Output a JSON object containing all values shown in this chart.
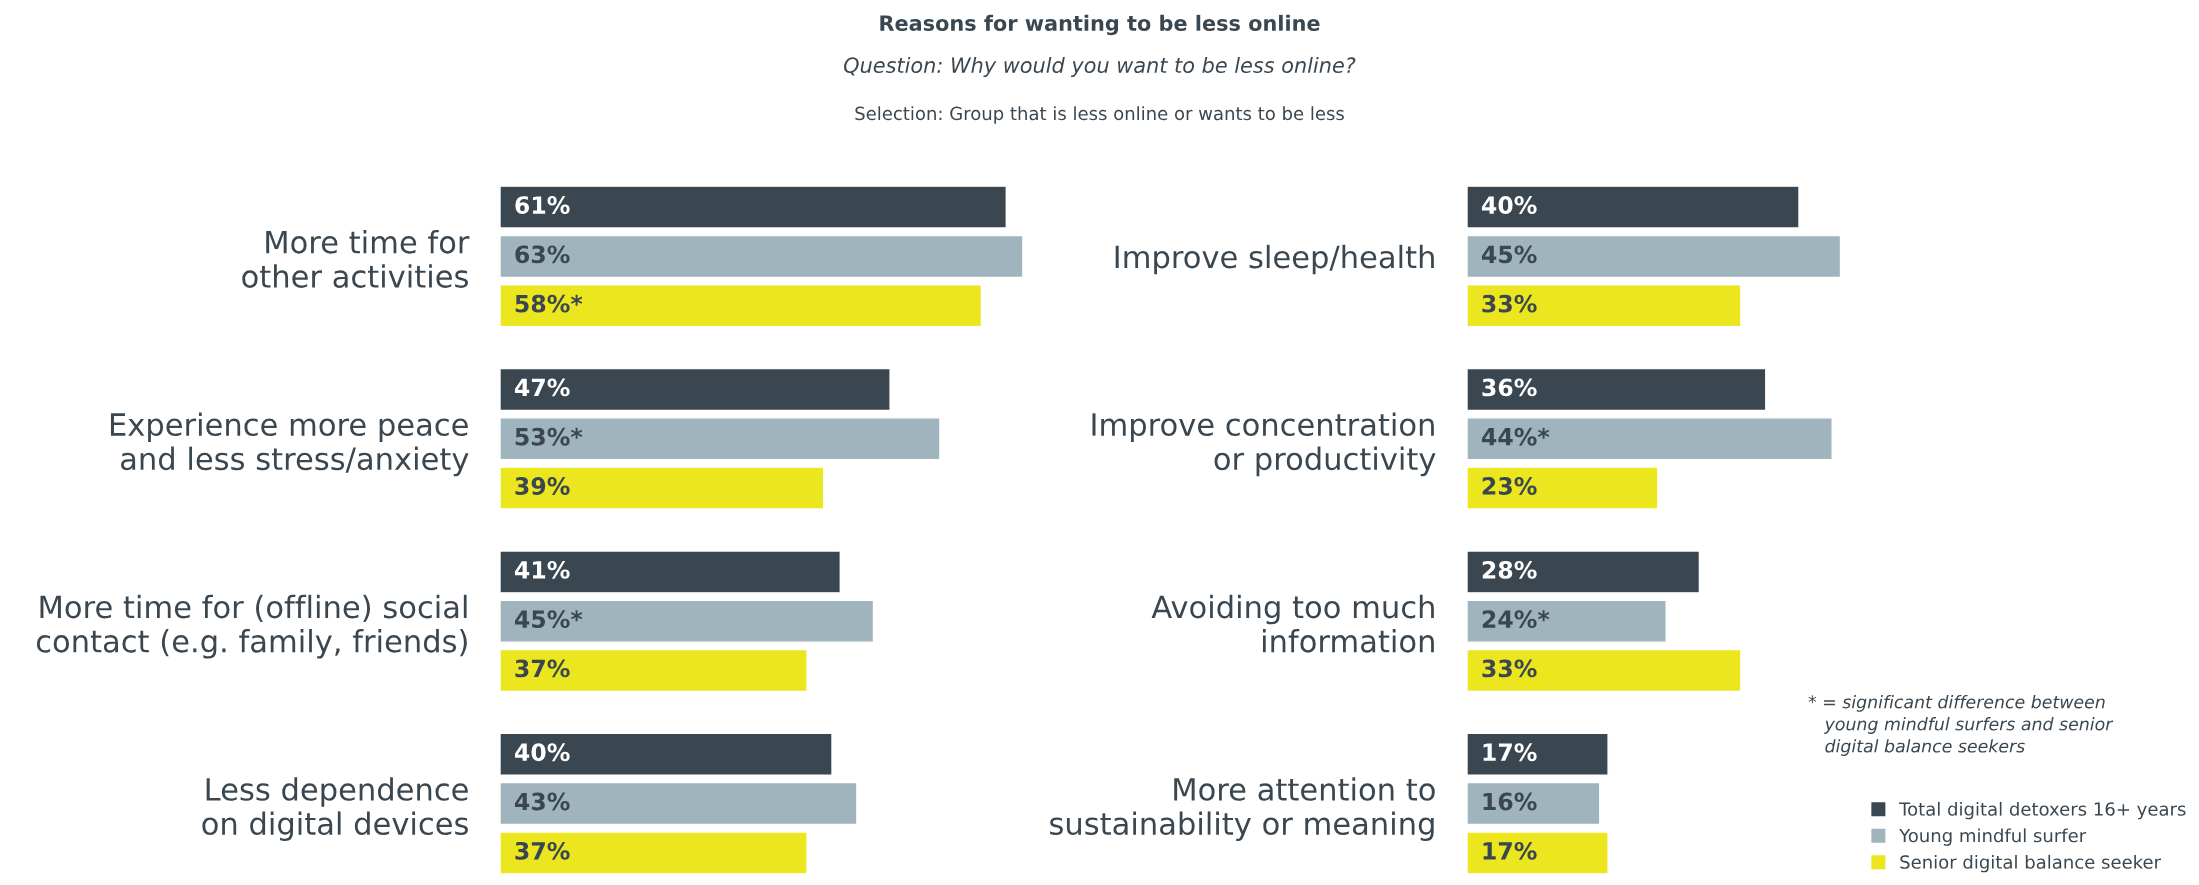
{
  "chart_data": [
    {
      "type": "bar",
      "orientation": "horizontal",
      "title": "Reasons for wanting to be less online",
      "subtitle": "Question: Why would you want to be less online?",
      "annotations": [
        "Selection: Group that is less online or wants to be less"
      ],
      "categories": [
        "More time for\nother activities",
        "Experience more peace\nand less stress/anxiety",
        "More time for (offline) social\ncontact (e.g. family, friends)",
        "Less dependence\non digital devices"
      ],
      "series": [
        {
          "color": "#3a4750",
          "values": [
            61,
            47,
            41,
            40
          ],
          "value_labels": [
            "61%",
            "47%",
            "41%",
            "40%"
          ]
        },
        {
          "color": "#a0b4be",
          "values": [
            63,
            53,
            45,
            43
          ],
          "value_labels": [
            "63%",
            "53%*",
            "45%*",
            "43%"
          ]
        },
        {
          "color": "#ebe61e",
          "values": [
            58,
            39,
            37,
            37
          ],
          "value_labels": [
            "58%*",
            "39%",
            "37%",
            "37%"
          ]
        }
      ]
    },
    {
      "type": "bar",
      "orientation": "horizontal",
      "legend": "bottom right",
      "annotations": [
        "* = significant difference between\n   young mindful surfers and senior\n   digital balance seekers"
      ],
      "categories": [
        "Improve sleep/health",
        "Improve concentration\nor productivity",
        "Avoiding too much\ninformation",
        "More attention to\nsustainability or meaning"
      ],
      "series": [
        {
          "name": "Total digital detoxers 16+ years",
          "color": "#3a4750",
          "values": [
            40,
            36,
            28,
            17
          ],
          "value_labels": [
            "40%",
            "36%",
            "28%",
            "17%"
          ]
        },
        {
          "name": "Young mindful surfer",
          "color": "#a0b4be",
          "values": [
            45,
            44,
            24,
            16
          ],
          "value_labels": [
            "45%",
            "44%*",
            "24%*",
            "16%"
          ]
        },
        {
          "name": "Senior digital balance seeker",
          "color": "#ebe61e",
          "values": [
            33,
            23,
            33,
            17
          ],
          "value_labels": [
            "33%",
            "23%",
            "33%",
            "17%"
          ]
        }
      ]
    }
  ]
}
